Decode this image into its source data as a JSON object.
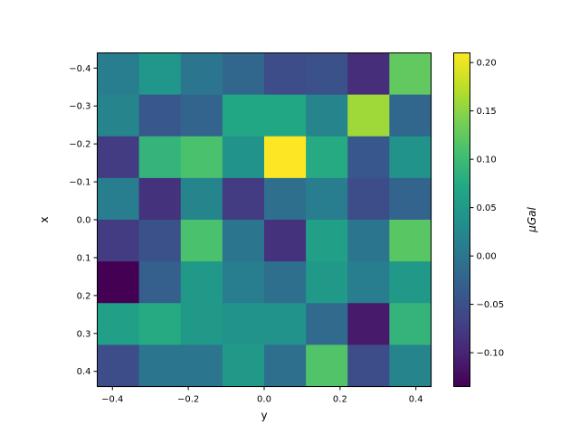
{
  "chart_data": {
    "type": "heatmap",
    "title": "",
    "xlabel": "y",
    "ylabel": "x",
    "colorbar_label": "μGal",
    "colormap": "viridis",
    "vmin": -0.135,
    "vmax": 0.21,
    "x_range": [
      -0.44,
      0.44
    ],
    "y_range": [
      0.44,
      -0.44
    ],
    "x_edges": [
      -0.44,
      -0.33,
      -0.22,
      -0.11,
      0.0,
      0.11,
      0.22,
      0.33,
      0.44
    ],
    "y_edges": [
      -0.44,
      -0.33,
      -0.22,
      -0.11,
      0.0,
      0.11,
      0.22,
      0.33,
      0.44
    ],
    "x_ticks": [
      {
        "value": -0.4,
        "label": "−0.4"
      },
      {
        "value": -0.2,
        "label": "−0.2"
      },
      {
        "value": 0.0,
        "label": "0.0"
      },
      {
        "value": 0.2,
        "label": "0.2"
      },
      {
        "value": 0.4,
        "label": "0.4"
      }
    ],
    "y_ticks": [
      {
        "value": -0.4,
        "label": "−0.4"
      },
      {
        "value": -0.3,
        "label": "−0.3"
      },
      {
        "value": -0.2,
        "label": "−0.2"
      },
      {
        "value": -0.1,
        "label": "−0.1"
      },
      {
        "value": 0.0,
        "label": "0.0"
      },
      {
        "value": 0.1,
        "label": "0.1"
      },
      {
        "value": 0.2,
        "label": "0.2"
      },
      {
        "value": 0.3,
        "label": "0.3"
      },
      {
        "value": 0.4,
        "label": "0.4"
      }
    ],
    "colorbar_ticks": [
      {
        "value": -0.1,
        "label": "−0.10"
      },
      {
        "value": -0.05,
        "label": "−0.05"
      },
      {
        "value": 0.0,
        "label": "0.00"
      },
      {
        "value": 0.05,
        "label": "0.05"
      },
      {
        "value": 0.1,
        "label": "0.10"
      },
      {
        "value": 0.15,
        "label": "0.15"
      },
      {
        "value": 0.2,
        "label": "0.20"
      }
    ],
    "values": [
      [
        0.01,
        0.045,
        0.0,
        -0.02,
        -0.055,
        -0.05,
        -0.09,
        0.125
      ],
      [
        0.02,
        -0.04,
        -0.025,
        0.07,
        0.07,
        0.02,
        0.16,
        -0.02
      ],
      [
        -0.075,
        0.09,
        0.11,
        0.04,
        0.21,
        0.075,
        -0.04,
        0.04
      ],
      [
        0.01,
        -0.085,
        0.02,
        -0.075,
        -0.01,
        0.01,
        -0.055,
        -0.025
      ],
      [
        -0.075,
        -0.05,
        0.11,
        0.0,
        -0.085,
        0.06,
        0.0,
        0.12
      ],
      [
        -0.135,
        -0.03,
        0.05,
        0.01,
        -0.01,
        0.05,
        0.01,
        0.05
      ],
      [
        0.06,
        0.075,
        0.05,
        0.04,
        0.04,
        -0.015,
        -0.11,
        0.09
      ],
      [
        -0.055,
        0.0,
        0.0,
        0.05,
        -0.01,
        0.115,
        -0.055,
        0.02
      ]
    ]
  }
}
